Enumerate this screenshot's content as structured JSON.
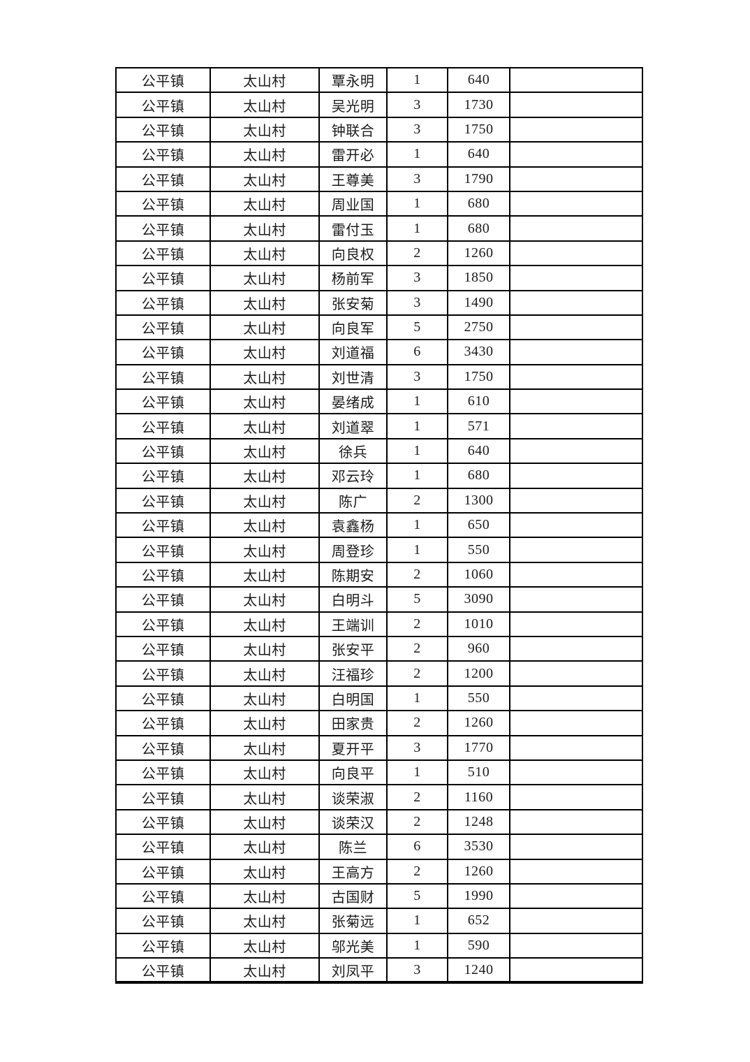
{
  "document": {
    "background_color": "#ffffff",
    "text_color": "#1b1b1b",
    "border_color": "#000000"
  },
  "table": {
    "town_label": "公平镇",
    "village_label": "太山村",
    "rows": [
      [
        "公平镇",
        "太山村",
        "覃永明",
        "1",
        "640",
        ""
      ],
      [
        "公平镇",
        "太山村",
        "吴光明",
        "3",
        "1730",
        ""
      ],
      [
        "公平镇",
        "太山村",
        "钟联合",
        "3",
        "1750",
        ""
      ],
      [
        "公平镇",
        "太山村",
        "雷开必",
        "1",
        "640",
        ""
      ],
      [
        "公平镇",
        "太山村",
        "王尊美",
        "3",
        "1790",
        ""
      ],
      [
        "公平镇",
        "太山村",
        "周业国",
        "1",
        "680",
        ""
      ],
      [
        "公平镇",
        "太山村",
        "雷付玉",
        "1",
        "680",
        ""
      ],
      [
        "公平镇",
        "太山村",
        "向良权",
        "2",
        "1260",
        ""
      ],
      [
        "公平镇",
        "太山村",
        "杨前军",
        "3",
        "1850",
        ""
      ],
      [
        "公平镇",
        "太山村",
        "张安菊",
        "3",
        "1490",
        ""
      ],
      [
        "公平镇",
        "太山村",
        "向良军",
        "5",
        "2750",
        ""
      ],
      [
        "公平镇",
        "太山村",
        "刘道福",
        "6",
        "3430",
        ""
      ],
      [
        "公平镇",
        "太山村",
        "刘世清",
        "3",
        "1750",
        ""
      ],
      [
        "公平镇",
        "太山村",
        "晏绪成",
        "1",
        "610",
        ""
      ],
      [
        "公平镇",
        "太山村",
        "刘道翠",
        "1",
        "571",
        ""
      ],
      [
        "公平镇",
        "太山村",
        "徐兵",
        "1",
        "640",
        ""
      ],
      [
        "公平镇",
        "太山村",
        "邓云玲",
        "1",
        "680",
        ""
      ],
      [
        "公平镇",
        "太山村",
        "陈广",
        "2",
        "1300",
        ""
      ],
      [
        "公平镇",
        "太山村",
        "袁鑫杨",
        "1",
        "650",
        ""
      ],
      [
        "公平镇",
        "太山村",
        "周登珍",
        "1",
        "550",
        ""
      ],
      [
        "公平镇",
        "太山村",
        "陈期安",
        "2",
        "1060",
        ""
      ],
      [
        "公平镇",
        "太山村",
        "白明斗",
        "5",
        "3090",
        ""
      ],
      [
        "公平镇",
        "太山村",
        "王端训",
        "2",
        "1010",
        ""
      ],
      [
        "公平镇",
        "太山村",
        "张安平",
        "2",
        "960",
        ""
      ],
      [
        "公平镇",
        "太山村",
        "汪福珍",
        "2",
        "1200",
        ""
      ],
      [
        "公平镇",
        "太山村",
        "白明国",
        "1",
        "550",
        ""
      ],
      [
        "公平镇",
        "太山村",
        "田家贵",
        "2",
        "1260",
        ""
      ],
      [
        "公平镇",
        "太山村",
        "夏开平",
        "3",
        "1770",
        ""
      ],
      [
        "公平镇",
        "太山村",
        "向良平",
        "1",
        "510",
        ""
      ],
      [
        "公平镇",
        "太山村",
        "谈荣淑",
        "2",
        "1160",
        ""
      ],
      [
        "公平镇",
        "太山村",
        "谈荣汉",
        "2",
        "1248",
        ""
      ],
      [
        "公平镇",
        "太山村",
        "陈兰",
        "6",
        "3530",
        ""
      ],
      [
        "公平镇",
        "太山村",
        "王高方",
        "2",
        "1260",
        ""
      ],
      [
        "公平镇",
        "太山村",
        "古国财",
        "5",
        "1990",
        ""
      ],
      [
        "公平镇",
        "太山村",
        "张菊远",
        "1",
        "652",
        ""
      ],
      [
        "公平镇",
        "太山村",
        "邬光美",
        "1",
        "590",
        ""
      ],
      [
        "公平镇",
        "太山村",
        "刘凤平",
        "3",
        "1240",
        ""
      ]
    ]
  }
}
